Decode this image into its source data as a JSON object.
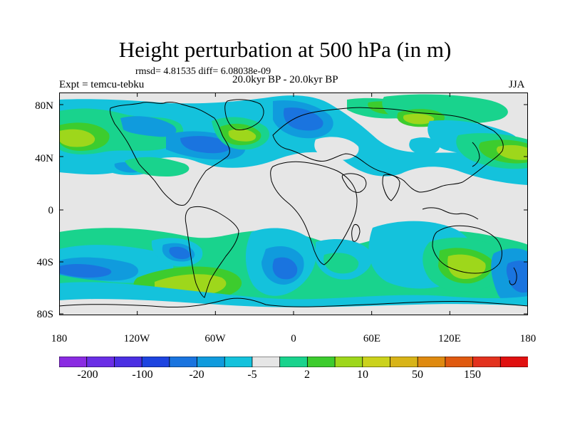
{
  "title": "Height perturbation at 500 hPa (in m)",
  "stats_line": "rmsd= 4.81535 diff= 6.08038e-09",
  "left_label": "Expt = temcu-tebku",
  "center_label": "20.0kyr BP - 20.0kyr BP",
  "right_label": "JJA",
  "lat_labels": [
    "80N",
    "40N",
    "0",
    "40S",
    "80S"
  ],
  "lon_labels": [
    "180",
    "120W",
    "60W",
    "0",
    "60E",
    "120E",
    "180"
  ],
  "colorbar": {
    "colors": [
      "#8a2be2",
      "#6a2ee6",
      "#4b2fe3",
      "#1d44e0",
      "#1a74df",
      "#109bdd",
      "#14c2dc",
      "#e6e6e6",
      "#19d38d",
      "#3dcc2e",
      "#9ed71b",
      "#cbd21c",
      "#d8b418",
      "#df8a10",
      "#e05a10",
      "#e3321e",
      "#e01010"
    ],
    "labels": [
      "-200",
      "-100",
      "-20",
      "-5",
      "2",
      "10",
      "50",
      "150"
    ]
  },
  "palette": {
    "neutral": "#e6e6e6",
    "neg_light": "#14c2dc",
    "neg_mid": "#109bdd",
    "neg_dark": "#1a74df",
    "pos_light": "#19d38d",
    "pos_mid": "#3dcc2e",
    "pos_dark": "#9ed71b"
  }
}
